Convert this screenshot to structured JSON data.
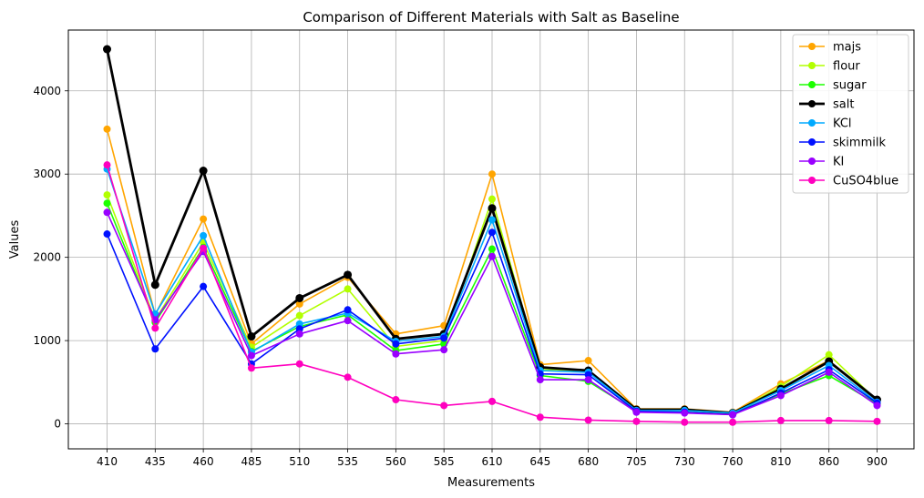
{
  "chart_data": {
    "type": "line",
    "title": "Comparison of Different Materials with Salt as Baseline",
    "xlabel": "Measurements",
    "ylabel": "Values",
    "categories": [
      "410",
      "435",
      "460",
      "485",
      "510",
      "535",
      "560",
      "585",
      "610",
      "645",
      "680",
      "705",
      "730",
      "760",
      "810",
      "860",
      "900"
    ],
    "yticks": [
      0,
      1000,
      2000,
      3000,
      4000
    ],
    "ylim": [
      -300,
      4730
    ],
    "grid": true,
    "legend_position": "top-right",
    "series": [
      {
        "name": "majs",
        "color": "#ffa500",
        "values": [
          3540,
          1310,
          2460,
          960,
          1440,
          1760,
          1080,
          1180,
          3000,
          710,
          760,
          180,
          180,
          140,
          480,
          760,
          290
        ]
      },
      {
        "name": "flour",
        "color": "#b2ff00",
        "values": [
          2750,
          1250,
          2180,
          920,
          1300,
          1620,
          930,
          1000,
          2700,
          650,
          640,
          160,
          160,
          130,
          450,
          830,
          280
        ]
      },
      {
        "name": "sugar",
        "color": "#1cff00",
        "values": [
          2650,
          1220,
          2120,
          870,
          1170,
          1310,
          880,
          960,
          2100,
          580,
          510,
          150,
          140,
          120,
          360,
          580,
          240
        ]
      },
      {
        "name": "salt",
        "color": "#000000",
        "bold": true,
        "values": [
          4500,
          1670,
          3040,
          1050,
          1510,
          1790,
          1020,
          1080,
          2590,
          680,
          640,
          170,
          170,
          130,
          420,
          750,
          290
        ]
      },
      {
        "name": "KCl",
        "color": "#00aaff",
        "values": [
          3060,
          1320,
          2260,
          860,
          1200,
          1330,
          990,
          1050,
          2450,
          640,
          620,
          160,
          160,
          130,
          400,
          700,
          260
        ]
      },
      {
        "name": "skimmilk",
        "color": "#0011ff",
        "values": [
          2280,
          900,
          1650,
          720,
          1140,
          1370,
          960,
          1030,
          2300,
          600,
          590,
          150,
          140,
          110,
          370,
          650,
          250
        ]
      },
      {
        "name": "KI",
        "color": "#9900ff",
        "values": [
          2540,
          1250,
          2070,
          820,
          1080,
          1240,
          840,
          890,
          2010,
          530,
          530,
          140,
          130,
          110,
          340,
          620,
          220
        ]
      },
      {
        "name": "CuSO4blue",
        "color": "#ff00bf",
        "values": [
          3110,
          1150,
          2110,
          670,
          720,
          560,
          290,
          220,
          270,
          80,
          45,
          30,
          20,
          20,
          40,
          40,
          30
        ]
      }
    ]
  }
}
